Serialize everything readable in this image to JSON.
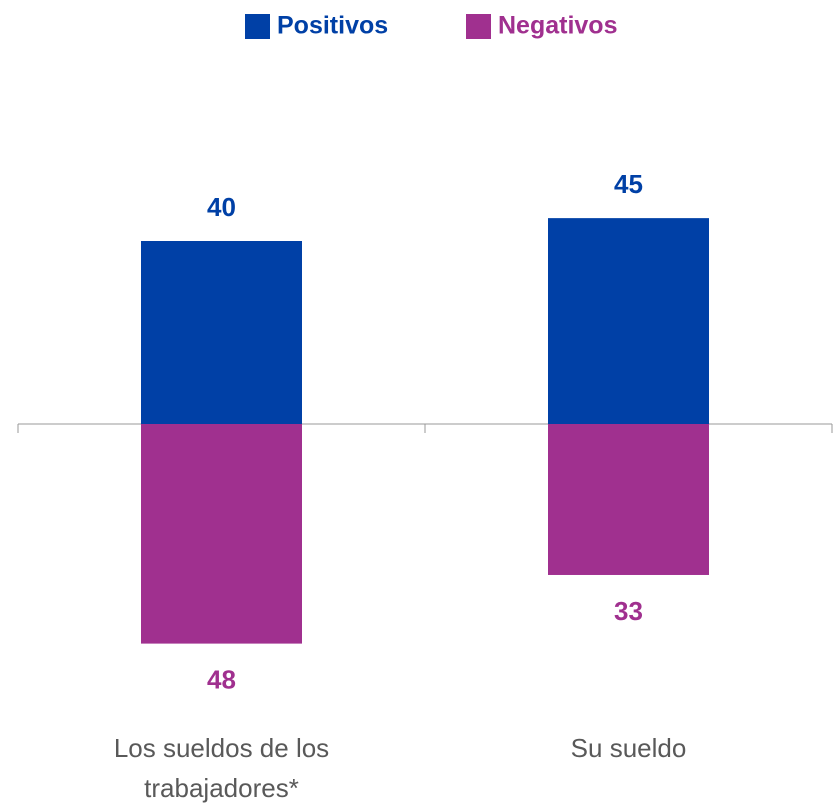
{
  "chart_data": {
    "type": "diverging_bar",
    "categories": [
      "Los sueldos de los trabajadores*",
      "Su sueldo"
    ],
    "series": [
      {
        "name": "Positivos",
        "color": "#0040a6",
        "values": [
          40,
          45
        ]
      },
      {
        "name": "Negativos",
        "color": "#a0308f",
        "values": [
          48,
          33
        ]
      }
    ]
  }
}
